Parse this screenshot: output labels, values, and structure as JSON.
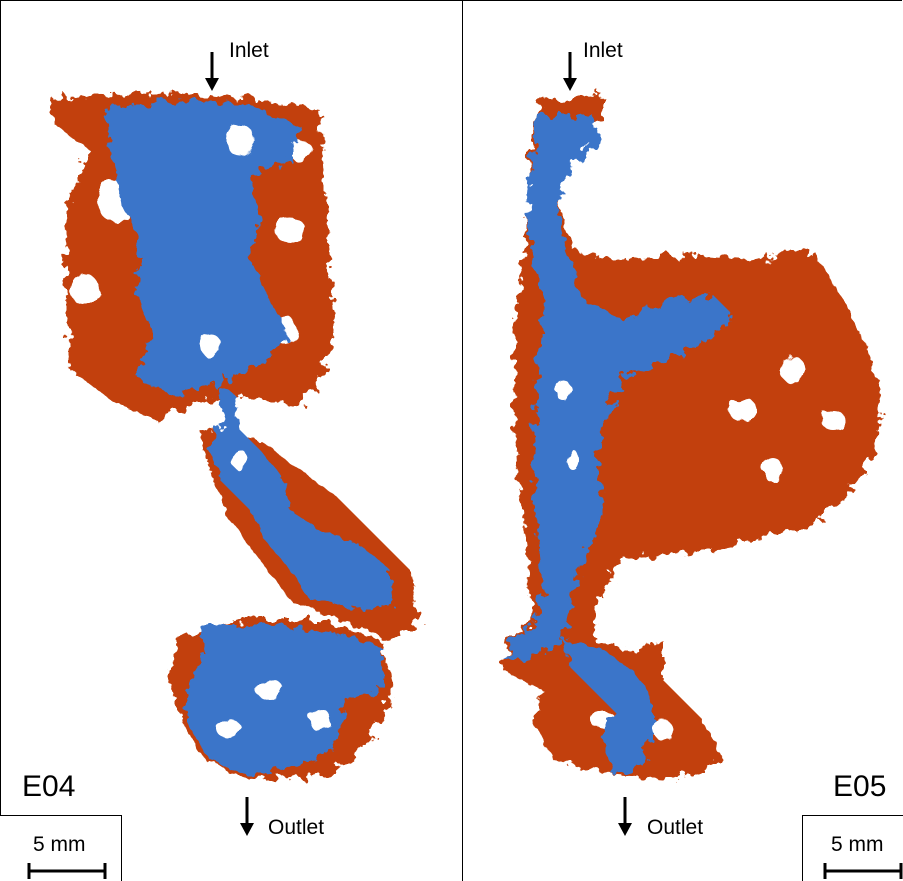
{
  "colors": {
    "phase_a": "#c2410c",
    "phase_b": "#3b74c9",
    "background": "#ffffff"
  },
  "left_panel": {
    "inlet_label": "Inlet",
    "outlet_label": "Outlet",
    "sample_id": "E04",
    "scale_label": "5 mm"
  },
  "right_panel": {
    "inlet_label": "Inlet",
    "outlet_label": "Outlet",
    "sample_id": "E05",
    "scale_label": "5 mm"
  }
}
